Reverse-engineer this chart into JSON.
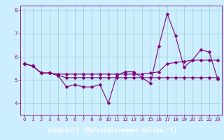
{
  "x": [
    0,
    1,
    2,
    3,
    4,
    5,
    6,
    7,
    8,
    9,
    10,
    11,
    12,
    13,
    14,
    15,
    16,
    17,
    18,
    19,
    20,
    21,
    22,
    23
  ],
  "line1": [
    5.7,
    5.6,
    5.3,
    5.3,
    5.2,
    4.7,
    4.8,
    4.7,
    4.7,
    4.8,
    4.0,
    5.2,
    5.35,
    5.35,
    5.1,
    4.85,
    6.45,
    7.85,
    6.9,
    5.55,
    5.85,
    6.3,
    6.2,
    5.05
  ],
  "line2": [
    5.7,
    5.6,
    5.3,
    5.3,
    5.25,
    5.25,
    5.25,
    5.25,
    5.25,
    5.25,
    5.25,
    5.25,
    5.25,
    5.25,
    5.25,
    5.3,
    5.35,
    5.7,
    5.75,
    5.8,
    5.85,
    5.85,
    5.85,
    5.85
  ],
  "line3": [
    5.7,
    5.6,
    5.3,
    5.3,
    5.2,
    5.1,
    5.1,
    5.1,
    5.1,
    5.1,
    5.1,
    5.1,
    5.1,
    5.1,
    5.1,
    5.1,
    5.1,
    5.1,
    5.1,
    5.1,
    5.1,
    5.1,
    5.1,
    5.1
  ],
  "line_color": "#800080",
  "bg_color": "#cceeff",
  "grid_color": "#99cccc",
  "xlabel": "Windchill (Refroidissement éolien,°C)",
  "ylim": [
    3.5,
    8.2
  ],
  "xlim": [
    -0.5,
    23.5
  ],
  "yticks": [
    4,
    5,
    6,
    7,
    8
  ],
  "xticks": [
    0,
    1,
    2,
    3,
    4,
    5,
    6,
    7,
    8,
    9,
    10,
    11,
    12,
    13,
    14,
    15,
    16,
    17,
    18,
    19,
    20,
    21,
    22,
    23
  ]
}
